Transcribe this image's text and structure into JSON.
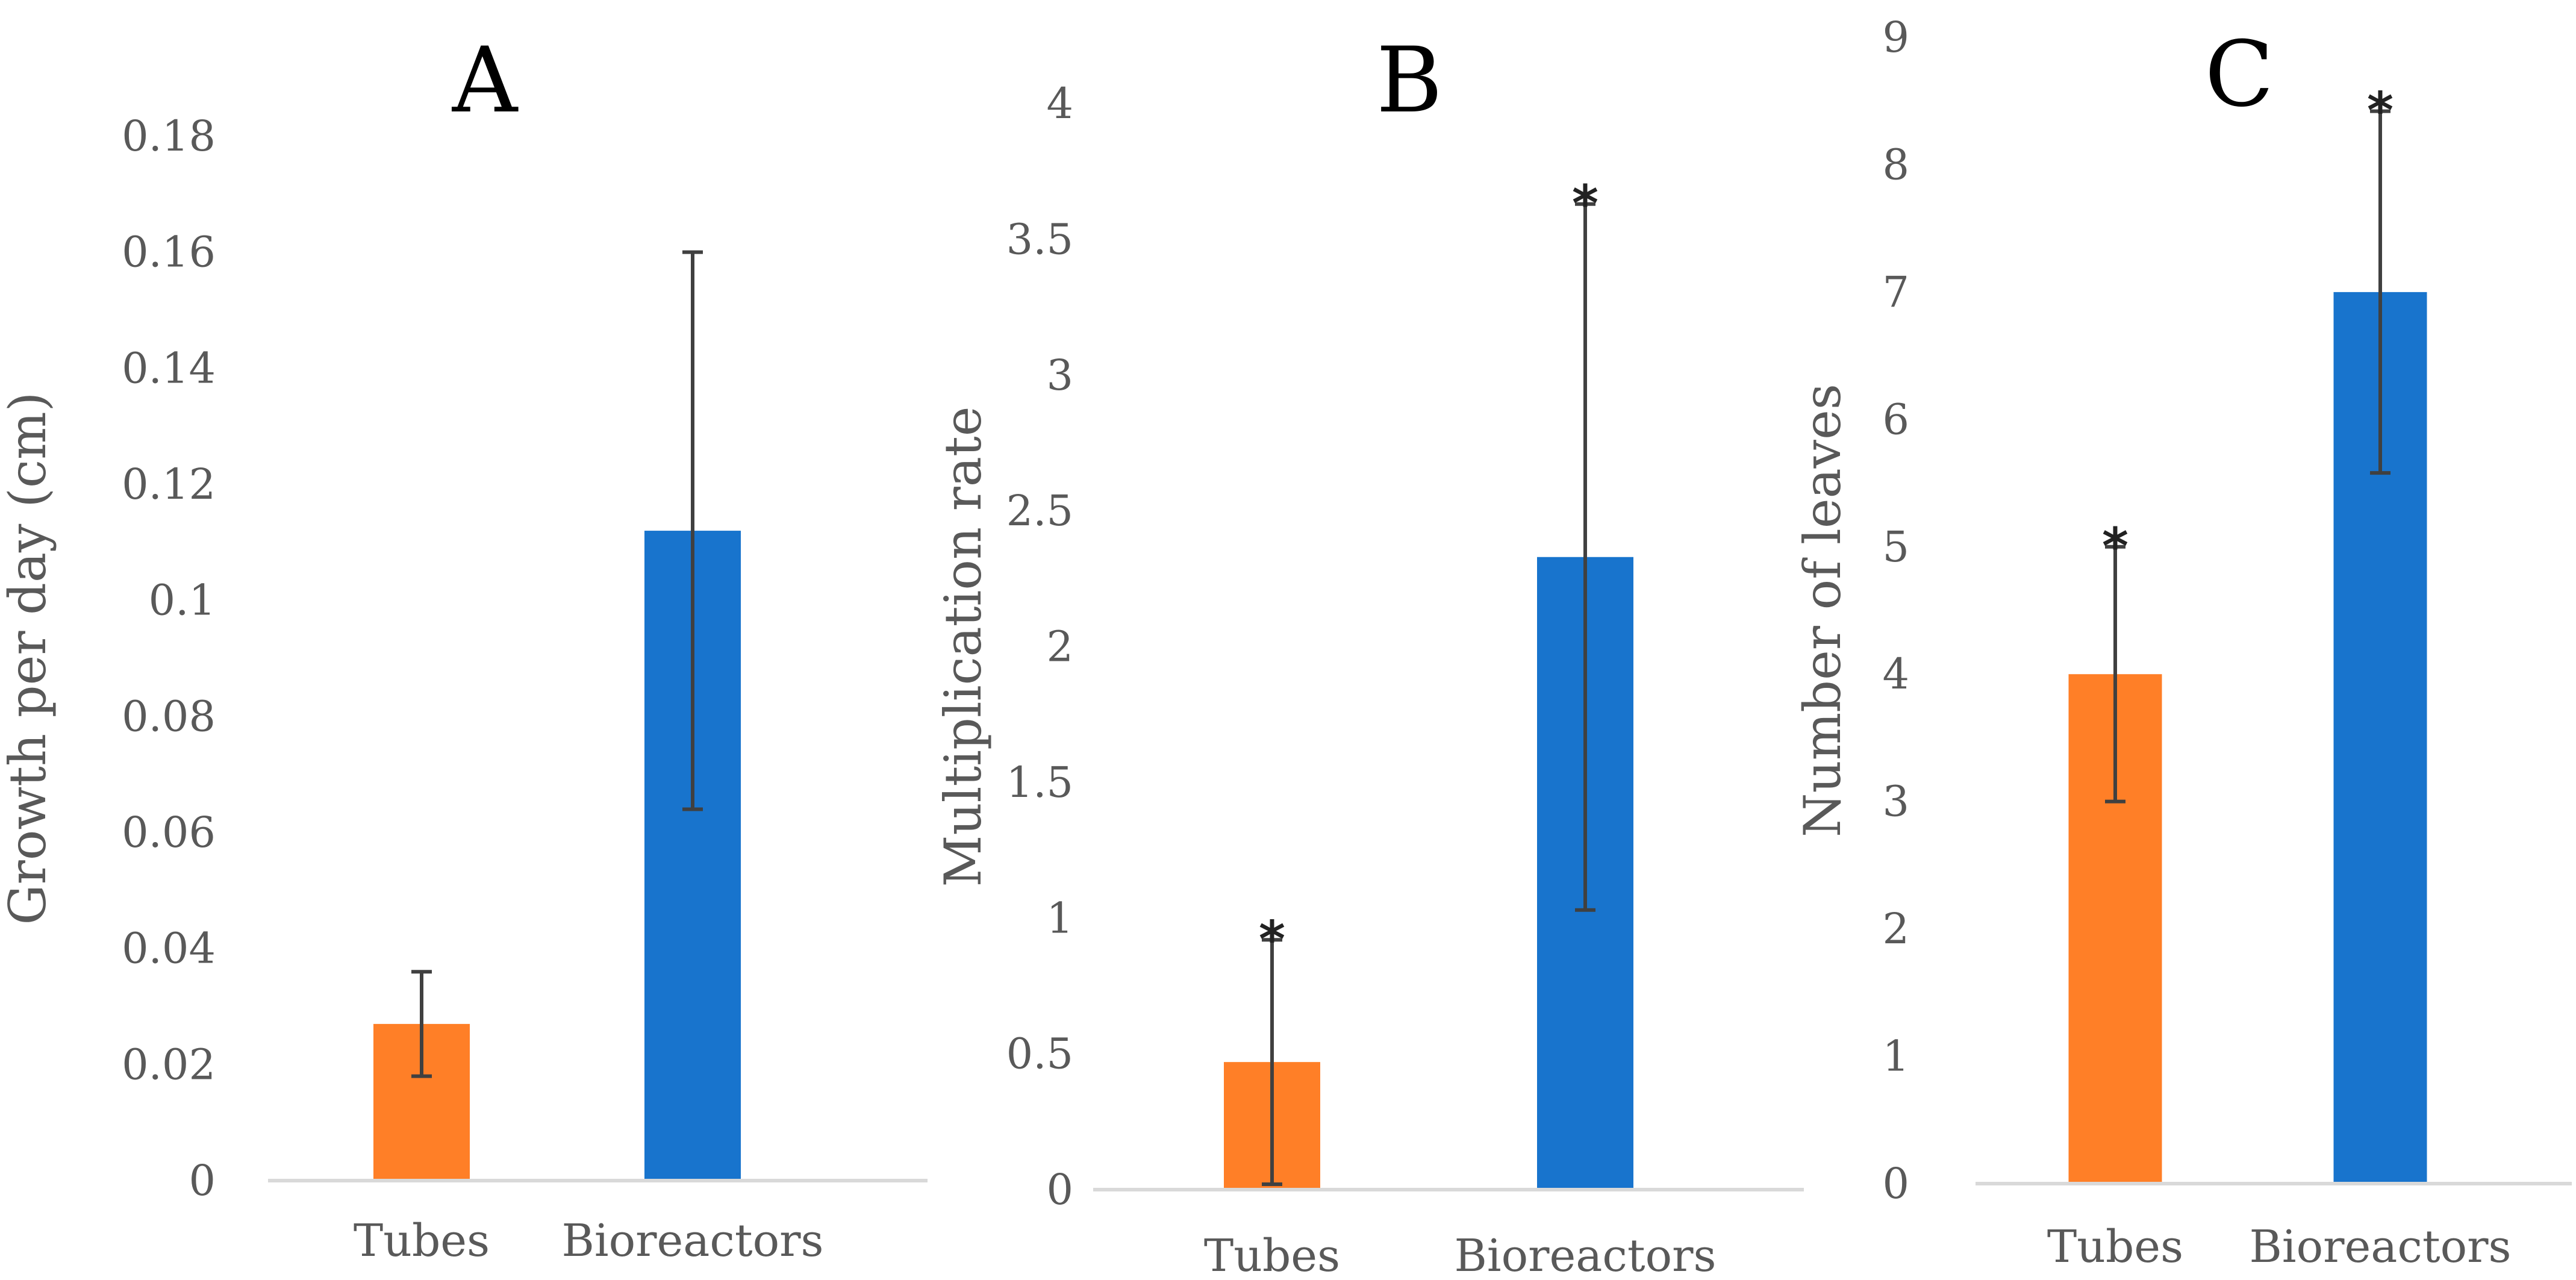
{
  "colors": {
    "tubes": "#FF7F27",
    "bioreactors": "#1874CD",
    "axis": "#D9D9D9",
    "errorbar": "#404040"
  },
  "chart_data": [
    {
      "type": "bar",
      "panel": "A",
      "title": "A",
      "categories": [
        "Tubes",
        "Bioreactors"
      ],
      "values": [
        0.027,
        0.112
      ],
      "errors": [
        0.009,
        0.048
      ],
      "significance": [
        "",
        ""
      ],
      "ylabel": "Growth  per day (cm)",
      "xlabel": "",
      "ylim": [
        0,
        0.18
      ],
      "yticks": [
        "0",
        "0.02",
        "0.04",
        "0.06",
        "0.08",
        "0.1",
        "0.12",
        "0.14",
        "0.16",
        "0.18"
      ]
    },
    {
      "type": "bar",
      "panel": "B",
      "title": "B",
      "categories": [
        "Tubes",
        "Bioreactors"
      ],
      "values": [
        0.47,
        2.33
      ],
      "errors": [
        0.45,
        1.3
      ],
      "significance": [
        "*",
        "*"
      ],
      "ylabel": "Multiplication rate",
      "xlabel": "",
      "ylim": [
        0,
        4
      ],
      "yticks": [
        "0",
        "0.5",
        "1",
        "1.5",
        "2",
        "2.5",
        "3",
        "3.5",
        "4"
      ]
    },
    {
      "type": "bar",
      "panel": "C",
      "title": "C",
      "categories": [
        "Tubes",
        "Bioreactors"
      ],
      "values": [
        4,
        7
      ],
      "errors": [
        1,
        1.42
      ],
      "significance": [
        "*",
        "*"
      ],
      "ylabel": "Number of leaves",
      "xlabel": "",
      "ylim": [
        0,
        9
      ],
      "yticks": [
        "0",
        "1",
        "2",
        "3",
        "4",
        "5",
        "6",
        "7",
        "8",
        "9"
      ]
    }
  ]
}
